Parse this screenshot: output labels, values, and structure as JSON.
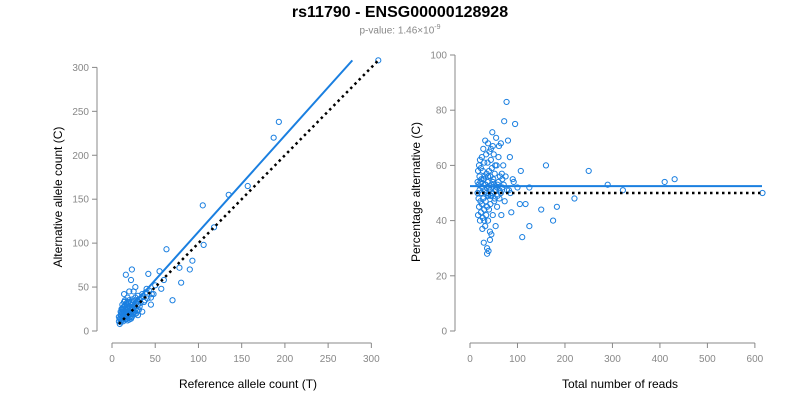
{
  "title": "rs11790 - ENSG00000128928",
  "subtitle": {
    "prefix": "p-value: 1.46×10",
    "exponent": "-9"
  },
  "colors": {
    "points": "#1a7fe0",
    "fit_line": "#1a7fe0",
    "reference_line": "#000000",
    "axis": "#888888",
    "tick_text": "#888888"
  },
  "chart_data": [
    {
      "type": "scatter",
      "xlabel": "Reference allele count (T)",
      "ylabel": "Alternative allele count (C)",
      "xlim": [
        0,
        310
      ],
      "ylim": [
        0,
        305
      ],
      "xticks": [
        0,
        50,
        100,
        150,
        200,
        250,
        300
      ],
      "yticks": [
        0,
        50,
        100,
        150,
        200,
        250,
        300
      ],
      "grid": false,
      "fit_line": {
        "x": [
          8,
          278
        ],
        "y": [
          12,
          308
        ],
        "style": "solid"
      },
      "reference_line": {
        "x": [
          8,
          308
        ],
        "y": [
          8,
          308
        ],
        "style": "dotted"
      },
      "points": [
        [
          308,
          308
        ],
        [
          193,
          238
        ],
        [
          187,
          220
        ],
        [
          157,
          165
        ],
        [
          135,
          155
        ],
        [
          105,
          143
        ],
        [
          118,
          118
        ],
        [
          106,
          98
        ],
        [
          93,
          80
        ],
        [
          90,
          70
        ],
        [
          78,
          72
        ],
        [
          80,
          55
        ],
        [
          70,
          35
        ],
        [
          63,
          93
        ],
        [
          60,
          58
        ],
        [
          55,
          68
        ],
        [
          57,
          48
        ],
        [
          50,
          52
        ],
        [
          48,
          42
        ],
        [
          45,
          38
        ],
        [
          45,
          30
        ],
        [
          42,
          65
        ],
        [
          40,
          48
        ],
        [
          38,
          35
        ],
        [
          35,
          22
        ],
        [
          35,
          42
        ],
        [
          32,
          28
        ],
        [
          30,
          40
        ],
        [
          30,
          18
        ],
        [
          28,
          32
        ],
        [
          27,
          50
        ],
        [
          25,
          45
        ],
        [
          24,
          25
        ],
        [
          23,
          70
        ],
        [
          22,
          33
        ],
        [
          22,
          58
        ],
        [
          21,
          20
        ],
        [
          20,
          28
        ],
        [
          20,
          45
        ],
        [
          19,
          15
        ],
        [
          18,
          38
        ],
        [
          18,
          26
        ],
        [
          17,
          30
        ],
        [
          16,
          64
        ],
        [
          16,
          22
        ],
        [
          15,
          35
        ],
        [
          15,
          18
        ],
        [
          14,
          28
        ],
        [
          14,
          42
        ],
        [
          13,
          24
        ],
        [
          13,
          15
        ],
        [
          12,
          20
        ],
        [
          12,
          30
        ],
        [
          11,
          12
        ],
        [
          11,
          25
        ],
        [
          10,
          18
        ],
        [
          10,
          10
        ],
        [
          10,
          22
        ],
        [
          9,
          14
        ],
        [
          9,
          8
        ],
        [
          8,
          16
        ],
        [
          8,
          11
        ],
        [
          12,
          16
        ],
        [
          13,
          19
        ],
        [
          14,
          21
        ],
        [
          15,
          23
        ],
        [
          16,
          17
        ],
        [
          17,
          24
        ],
        [
          18,
          19
        ],
        [
          19,
          22
        ],
        [
          20,
          21
        ],
        [
          21,
          26
        ],
        [
          22,
          24
        ],
        [
          23,
          27
        ],
        [
          24,
          30
        ],
        [
          25,
          22
        ],
        [
          26,
          28
        ],
        [
          27,
          24
        ],
        [
          28,
          26
        ],
        [
          29,
          34
        ],
        [
          30,
          30
        ],
        [
          31,
          36
        ],
        [
          33,
          32
        ],
        [
          34,
          38
        ],
        [
          36,
          40
        ],
        [
          37,
          33
        ],
        [
          39,
          44
        ],
        [
          41,
          37
        ],
        [
          43,
          46
        ],
        [
          46,
          42
        ],
        [
          11,
          17
        ],
        [
          12,
          13
        ],
        [
          13,
          27
        ],
        [
          14,
          16
        ],
        [
          15,
          29
        ],
        [
          16,
          31
        ],
        [
          17,
          14
        ],
        [
          18,
          33
        ],
        [
          19,
          18
        ],
        [
          20,
          35
        ],
        [
          21,
          16
        ],
        [
          22,
          19
        ],
        [
          23,
          16
        ],
        [
          24,
          20
        ],
        [
          25,
          34
        ],
        [
          26,
          19
        ],
        [
          27,
          38
        ],
        [
          28,
          20
        ],
        [
          29,
          23
        ],
        [
          31,
          24
        ],
        [
          10,
          14
        ],
        [
          11,
          21
        ],
        [
          12,
          25
        ],
        [
          13,
          11
        ],
        [
          14,
          33
        ],
        [
          15,
          13
        ],
        [
          16,
          26
        ],
        [
          17,
          19
        ],
        [
          18,
          12
        ],
        [
          19,
          27
        ],
        [
          20,
          13
        ],
        [
          21,
          31
        ],
        [
          22,
          14
        ],
        [
          23,
          22
        ],
        [
          24,
          36
        ]
      ]
    },
    {
      "type": "scatter",
      "xlabel": "Total number of reads",
      "ylabel": "Percentage alternative (C)",
      "xlim": [
        0,
        615
      ],
      "ylim": [
        0,
        100
      ],
      "xticks": [
        0,
        100,
        200,
        300,
        400,
        500,
        600
      ],
      "yticks": [
        0,
        20,
        40,
        60,
        80,
        100
      ],
      "grid": false,
      "fit_line": {
        "x": [
          0,
          615
        ],
        "y": [
          52.5,
          52.5
        ],
        "style": "solid"
      },
      "reference_line": {
        "x": [
          0,
          615
        ],
        "y": [
          50,
          50
        ],
        "style": "dotted"
      },
      "points": [
        [
          616,
          50
        ],
        [
          431,
          55
        ],
        [
          410,
          54
        ],
        [
          322,
          51
        ],
        [
          290,
          53
        ],
        [
          250,
          58
        ],
        [
          220,
          48
        ],
        [
          183,
          45
        ],
        [
          175,
          40
        ],
        [
          160,
          60
        ],
        [
          150,
          44
        ],
        [
          125,
          38
        ],
        [
          125,
          52
        ],
        [
          117,
          46
        ],
        [
          110,
          34
        ],
        [
          107,
          58
        ],
        [
          105,
          46
        ],
        [
          95,
          75
        ],
        [
          90,
          55
        ],
        [
          87,
          43
        ],
        [
          84,
          63
        ],
        [
          82,
          51
        ],
        [
          80,
          69
        ],
        [
          77,
          83
        ],
        [
          75,
          56
        ],
        [
          73,
          47
        ],
        [
          72,
          76
        ],
        [
          70,
          60
        ],
        [
          68,
          52
        ],
        [
          66,
          42
        ],
        [
          65,
          68
        ],
        [
          63,
          56
        ],
        [
          62,
          48
        ],
        [
          60,
          63
        ],
        [
          58,
          53
        ],
        [
          57,
          45
        ],
        [
          56,
          60
        ],
        [
          55,
          70
        ],
        [
          54,
          38
        ],
        [
          53,
          51
        ],
        [
          52,
          57
        ],
        [
          51,
          47
        ],
        [
          50,
          64
        ],
        [
          49,
          55
        ],
        [
          48,
          42
        ],
        [
          48,
          67
        ],
        [
          47,
          50
        ],
        [
          46,
          59
        ],
        [
          45,
          35
        ],
        [
          45,
          53
        ],
        [
          44,
          62
        ],
        [
          43,
          46
        ],
        [
          43,
          56
        ],
        [
          42,
          33
        ],
        [
          41,
          51
        ],
        [
          41,
          65
        ],
        [
          40,
          44
        ],
        [
          40,
          58
        ],
        [
          39,
          49
        ],
        [
          38,
          68
        ],
        [
          38,
          40
        ],
        [
          37,
          54
        ],
        [
          37,
          61
        ],
        [
          36,
          45
        ],
        [
          36,
          30
        ],
        [
          35,
          57
        ],
        [
          35,
          50
        ],
        [
          34,
          42
        ],
        [
          34,
          64
        ],
        [
          33,
          53
        ],
        [
          33,
          47
        ],
        [
          32,
          69
        ],
        [
          32,
          38
        ],
        [
          31,
          56
        ],
        [
          31,
          51
        ],
        [
          30,
          44
        ],
        [
          30,
          61
        ],
        [
          29,
          32
        ],
        [
          29,
          55
        ],
        [
          28,
          48
        ],
        [
          28,
          66
        ],
        [
          27,
          41
        ],
        [
          27,
          58
        ],
        [
          26,
          52
        ],
        [
          26,
          37
        ],
        [
          25,
          63
        ],
        [
          25,
          46
        ],
        [
          24,
          55
        ],
        [
          24,
          50
        ],
        [
          23,
          43
        ],
        [
          23,
          59
        ],
        [
          22,
          54
        ],
        [
          22,
          47
        ],
        [
          21,
          62
        ],
        [
          21,
          40
        ],
        [
          20,
          56
        ],
        [
          20,
          51
        ],
        [
          19,
          45
        ],
        [
          19,
          60
        ],
        [
          18,
          53
        ],
        [
          18,
          48
        ],
        [
          17,
          58
        ],
        [
          17,
          42
        ],
        [
          16,
          54
        ],
        [
          16,
          50
        ],
        [
          39,
          29
        ],
        [
          36,
          28
        ],
        [
          42,
          36
        ],
        [
          30,
          40
        ],
        [
          47,
          72
        ],
        [
          44,
          66
        ],
        [
          53,
          60
        ],
        [
          58,
          49
        ],
        [
          61,
          67
        ],
        [
          67,
          57
        ],
        [
          71,
          53
        ],
        [
          78,
          51
        ],
        [
          85,
          50
        ],
        [
          92,
          54
        ],
        [
          100,
          52
        ],
        [
          35,
          52
        ],
        [
          37,
          49
        ],
        [
          40,
          52
        ],
        [
          45,
          49
        ],
        [
          50,
          53
        ],
        [
          55,
          51
        ],
        [
          60,
          54
        ],
        [
          65,
          50
        ],
        [
          28,
          55
        ],
        [
          32,
          53
        ],
        [
          38,
          56
        ],
        [
          43,
          49
        ],
        [
          48,
          54
        ],
        [
          52,
          48
        ],
        [
          57,
          52
        ],
        [
          62,
          51
        ],
        [
          68,
          55
        ]
      ]
    }
  ]
}
